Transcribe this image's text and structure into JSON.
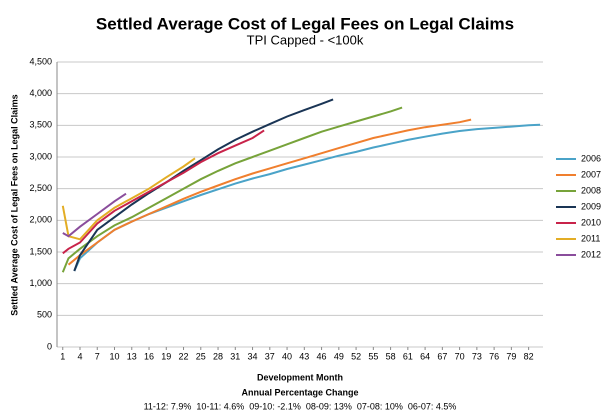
{
  "chart_data": {
    "type": "line",
    "title": "Settled Average Cost of Legal Fees on Legal Claims",
    "subtitle": "TPI Capped - <100k",
    "x_label": "Development Month",
    "y_label": "Settled Average Cost of Legal Fees on Legal Claims",
    "footer_title": "Annual Percentage Change",
    "footer_text": "11-12: 7.9%  10-11: 4.6%  09-10: -2.1%  08-09: 13%  07-08: 10%  06-07: 4.5%",
    "xlim": [
      0,
      84.5
    ],
    "xticks": [
      1,
      4,
      7,
      10,
      13,
      16,
      19,
      22,
      25,
      28,
      31,
      34,
      37,
      40,
      43,
      46,
      49,
      52,
      55,
      58,
      61,
      64,
      67,
      70,
      73,
      76,
      79,
      82
    ],
    "ylim": [
      0,
      4500
    ],
    "yticks": [
      0,
      {
        "value": 500,
        "label": "500"
      },
      {
        "value": 1000,
        "label": "1,000"
      },
      {
        "value": 1500,
        "label": "1,500"
      },
      {
        "value": 2000,
        "label": "2,000"
      },
      {
        "value": 2500,
        "label": "2,500"
      },
      {
        "value": 3000,
        "label": "3,000"
      },
      {
        "value": 3500,
        "label": "3,500"
      },
      {
        "value": 4000,
        "label": "4,000"
      },
      {
        "value": 4500,
        "label": "4,500"
      }
    ],
    "grid": true,
    "legend": "right",
    "series": [
      {
        "name": "2006",
        "color": "#4aa3c8",
        "x": [
          3,
          4,
          7,
          10,
          13,
          16,
          19,
          22,
          25,
          28,
          31,
          34,
          37,
          40,
          43,
          46,
          49,
          52,
          55,
          58,
          61,
          64,
          67,
          70,
          73,
          76,
          79,
          82,
          84
        ],
        "values": [
          1200,
          1400,
          1650,
          1850,
          1980,
          2100,
          2200,
          2300,
          2400,
          2490,
          2580,
          2660,
          2730,
          2810,
          2880,
          2950,
          3020,
          3080,
          3150,
          3210,
          3270,
          3320,
          3370,
          3410,
          3440,
          3460,
          3480,
          3500,
          3510
        ]
      },
      {
        "name": "2007",
        "color": "#f07f2e",
        "x": [
          2,
          4,
          7,
          10,
          13,
          16,
          19,
          22,
          25,
          28,
          31,
          34,
          37,
          40,
          43,
          46,
          49,
          52,
          55,
          58,
          61,
          64,
          67,
          70,
          72
        ],
        "values": [
          1300,
          1450,
          1650,
          1850,
          1980,
          2100,
          2220,
          2340,
          2450,
          2550,
          2650,
          2740,
          2820,
          2900,
          2980,
          3060,
          3140,
          3220,
          3300,
          3360,
          3420,
          3470,
          3510,
          3550,
          3590
        ]
      },
      {
        "name": "2008",
        "color": "#77a33a",
        "x": [
          1,
          2,
          4,
          7,
          10,
          13,
          16,
          19,
          22,
          25,
          28,
          31,
          34,
          37,
          40,
          43,
          46,
          49,
          52,
          55,
          58,
          60
        ],
        "values": [
          1180,
          1400,
          1550,
          1750,
          1920,
          2050,
          2200,
          2350,
          2500,
          2650,
          2780,
          2900,
          3000,
          3100,
          3200,
          3300,
          3400,
          3480,
          3560,
          3640,
          3720,
          3780
        ]
      },
      {
        "name": "2009",
        "color": "#1a3555",
        "x": [
          3,
          4,
          7,
          10,
          13,
          16,
          19,
          22,
          25,
          28,
          31,
          34,
          37,
          40,
          43,
          46,
          48
        ],
        "values": [
          1200,
          1450,
          1850,
          2050,
          2250,
          2430,
          2600,
          2780,
          2950,
          3120,
          3270,
          3400,
          3520,
          3640,
          3740,
          3840,
          3910
        ]
      },
      {
        "name": "2010",
        "color": "#c8234a",
        "x": [
          1,
          2,
          4,
          7,
          10,
          13,
          16,
          19,
          22,
          25,
          28,
          31,
          34,
          36
        ],
        "values": [
          1480,
          1550,
          1650,
          1950,
          2150,
          2300,
          2450,
          2600,
          2750,
          2920,
          3060,
          3180,
          3300,
          3420
        ]
      },
      {
        "name": "2011",
        "color": "#e3ad25",
        "x": [
          1,
          2,
          4,
          7,
          10,
          13,
          16,
          19,
          22,
          24
        ],
        "values": [
          2230,
          1750,
          1700,
          2000,
          2200,
          2350,
          2500,
          2680,
          2850,
          2980
        ]
      },
      {
        "name": "2012",
        "color": "#8a4d9c",
        "x": [
          1,
          2,
          4,
          7,
          10,
          12
        ],
        "values": [
          1800,
          1750,
          1900,
          2100,
          2300,
          2420
        ]
      }
    ]
  }
}
